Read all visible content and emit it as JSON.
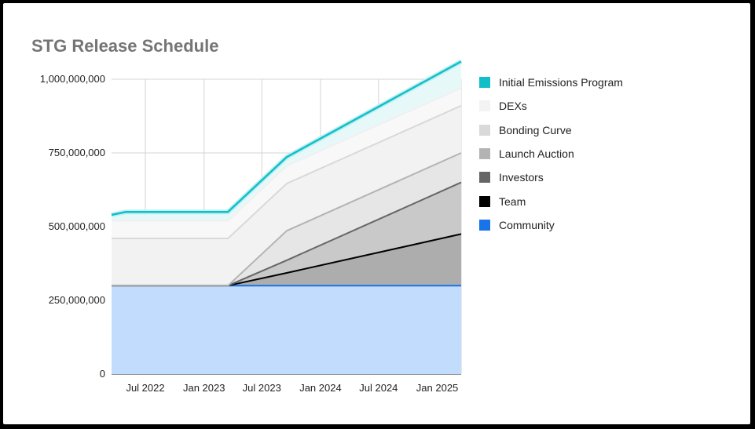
{
  "chart_data": {
    "type": "area",
    "title": "STG Release Schedule",
    "xlabel": "",
    "ylabel": "",
    "x_ticks": [
      "Jul 2022",
      "Jan 2023",
      "Jul 2023",
      "Jan 2024",
      "Jul 2024",
      "Jan 2025"
    ],
    "y_ticks": [
      "0",
      "250,000,000",
      "500,000,000",
      "750,000,000",
      "1,000,000,000"
    ],
    "ylim": [
      0,
      1000000000
    ],
    "xlim": [
      "2022-03-17",
      "2025-03-17"
    ],
    "stacked": true,
    "grid": true,
    "legend_position": "right",
    "x": [
      "2022-03-17",
      "2022-05-01",
      "2023-03-17",
      "2023-09-17",
      "2025-03-17"
    ],
    "series": [
      {
        "name": "Community",
        "color": "#1a73e8",
        "fill": "#c2dcfe",
        "values": [
          300000000,
          300000000,
          300000000,
          300000000,
          300000000
        ]
      },
      {
        "name": "Team",
        "color": "#000000",
        "fill": "#adadad",
        "values": [
          0,
          0,
          0,
          43000000,
          175000000
        ]
      },
      {
        "name": "Investors",
        "color": "#666666",
        "fill": "#c9c9c9",
        "values": [
          0,
          0,
          0,
          43000000,
          175000000
        ]
      },
      {
        "name": "Launch Auction",
        "color": "#b3b3b3",
        "fill": "#e6e6e6",
        "values": [
          0,
          0,
          0,
          100000000,
          100000000
        ]
      },
      {
        "name": "Bonding Curve",
        "color": "#d9d9d9",
        "fill": "#f2f2f2",
        "values": [
          160000000,
          160000000,
          160000000,
          160000000,
          160000000
        ]
      },
      {
        "name": "DEXs",
        "color": "#f0f0f0",
        "fill": "#f8f8f8",
        "values": [
          60000000,
          60000000,
          60000000,
          60000000,
          60000000
        ]
      },
      {
        "name": "Initial Emissions Program",
        "color": "#12bfc8",
        "fill": "#e7f8f9",
        "values": [
          20000000,
          30000000,
          30000000,
          30000000,
          90000000
        ]
      }
    ],
    "legend_order": [
      "Initial Emissions Program",
      "DEXs",
      "Bonding Curve",
      "Launch Auction",
      "Investors",
      "Team",
      "Community"
    ]
  }
}
